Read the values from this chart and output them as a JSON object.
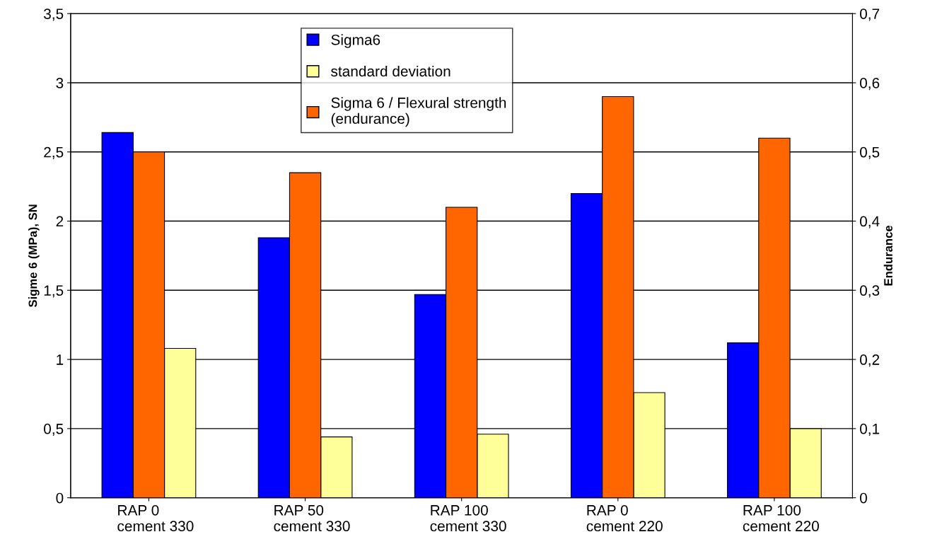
{
  "chart_data": {
    "type": "bar",
    "ylabel": "Sigme 6 (MPa), SN",
    "y2label": "Endurance",
    "categories": [
      "RAP 0\ncement 330",
      "RAP 50\ncement 330",
      "RAP 100\ncement 330",
      "RAP 0\ncement 220",
      "RAP 100\ncement 220"
    ],
    "series": [
      {
        "name": "Sigma6",
        "color": "#0000ff",
        "values": [
          2.64,
          1.88,
          1.47,
          2.2,
          1.12
        ]
      },
      {
        "name": "Sigma 6 / Flexural strength\n(endurance)",
        "color": "#ff6600",
        "values": [
          0.5,
          0.47,
          0.42,
          0.58,
          0.52
        ],
        "axis": "y2"
      },
      {
        "name": "standard deviation",
        "color": "#ffff99",
        "values": [
          1.08,
          0.44,
          0.46,
          0.76,
          0.5
        ]
      }
    ],
    "ylim": [
      0,
      3.5
    ],
    "yticks": [
      0,
      {
        "value": 0.5,
        "label": "0,5"
      },
      1,
      {
        "value": 1.5,
        "label": "1,5"
      },
      2,
      {
        "value": 2.5,
        "label": "2,5"
      },
      3,
      {
        "value": 3.5,
        "label": "3,5"
      }
    ],
    "y2lim": [
      0,
      0.7
    ],
    "y2ticks": [
      0,
      {
        "value": 0.1,
        "label": "0,1"
      },
      {
        "value": 0.2,
        "label": "0,2"
      },
      {
        "value": 0.3,
        "label": "0,3"
      },
      {
        "value": 0.4,
        "label": "0,4"
      },
      {
        "value": 0.5,
        "label": "0,5"
      },
      {
        "value": 0.6,
        "label": "0,6"
      },
      {
        "value": 0.7,
        "label": "0,7"
      }
    ],
    "grid": "y",
    "legend": "top"
  }
}
